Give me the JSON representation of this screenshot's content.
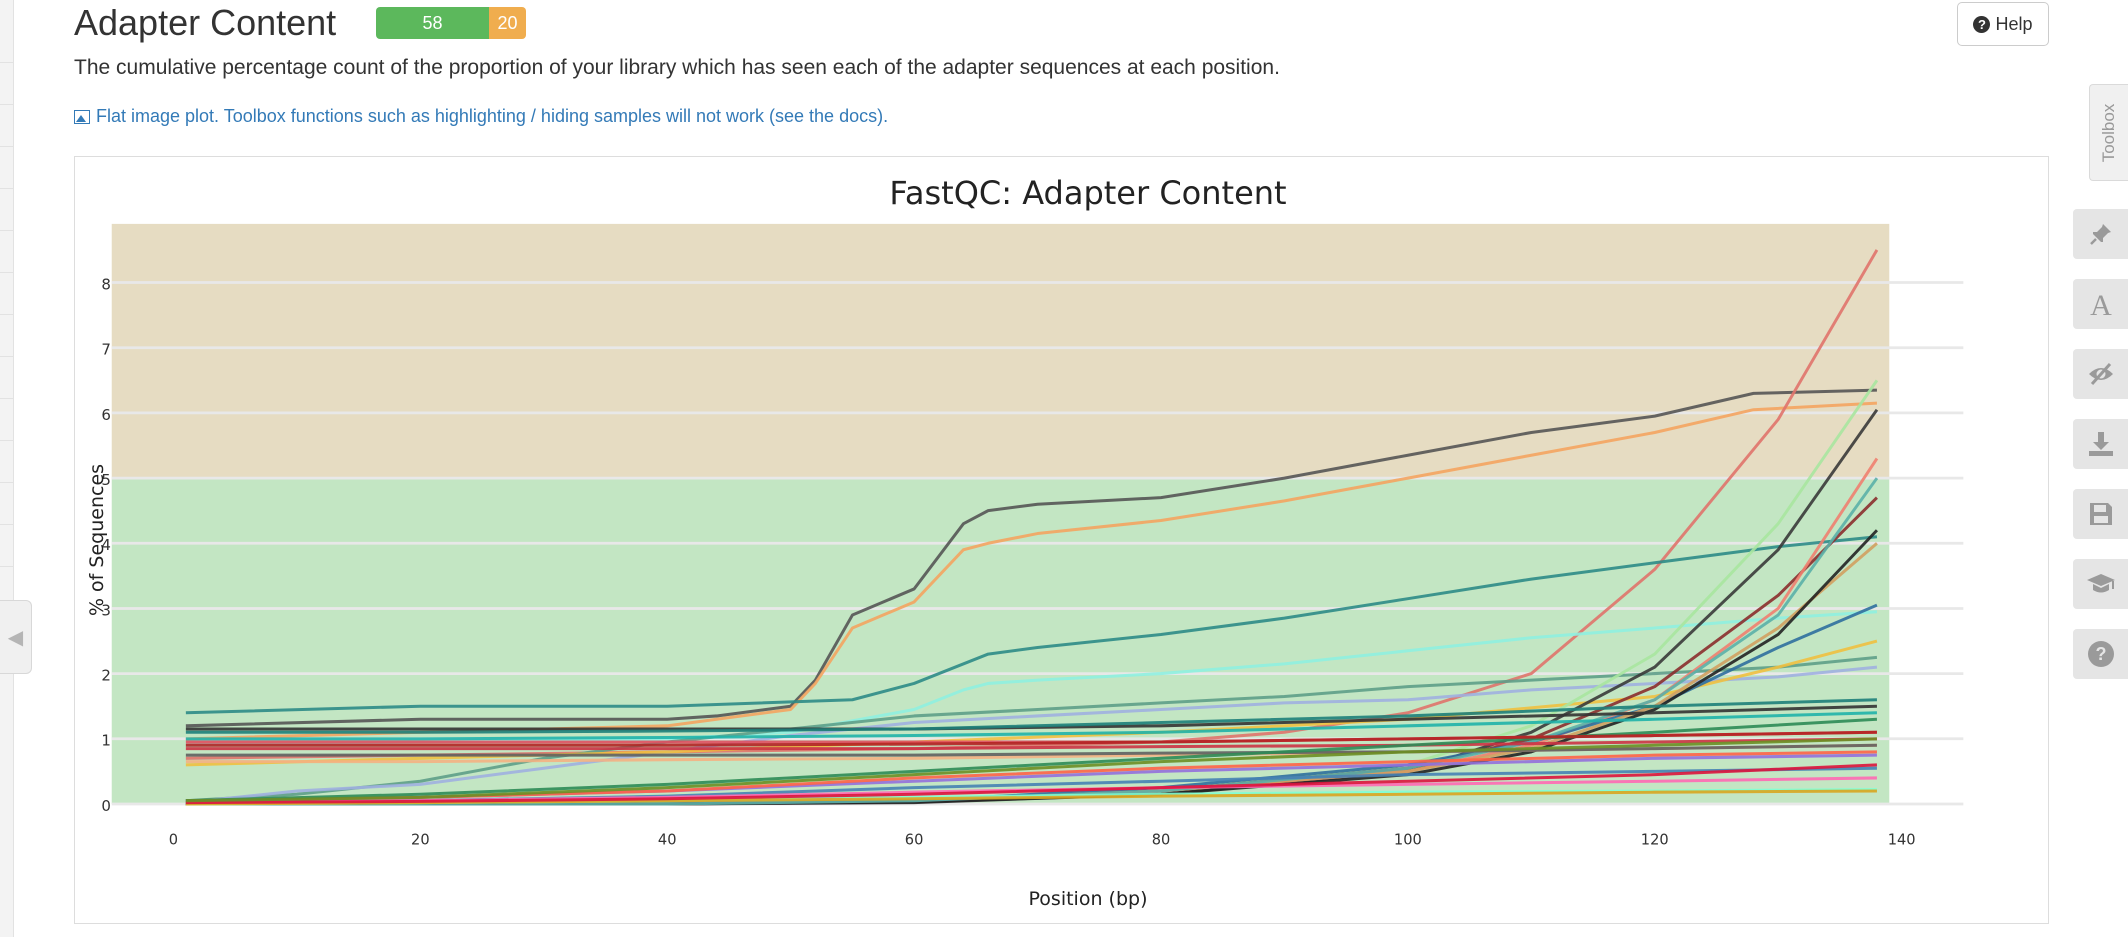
{
  "section": {
    "title": "Adapter Content",
    "status_pass": "58",
    "status_warn": "20",
    "help_label": "Help",
    "description": "The cumulative percentage count of the proportion of your library which has seen each of the adapter sequences at each position.",
    "flat_plot_notice": "Flat image plot. Toolbox functions such as highlighting / hiding samples will not work (see the docs)."
  },
  "toolbox": {
    "label": "Toolbox",
    "buttons": [
      "pin-icon",
      "font-icon",
      "eye-slash-icon",
      "download-icon",
      "save-icon",
      "graduation-cap-icon",
      "help-icon"
    ]
  },
  "colors": {
    "pass": "#5cb85c",
    "warn": "#f0ad4e",
    "green_zone": "#c3e6c3",
    "orange_zone": "#e6dcc2",
    "link": "#337ab7"
  },
  "chart_data": {
    "type": "line",
    "title": "FastQC: Adapter Content",
    "xlabel": "Position (bp)",
    "ylabel": "% of Sequences",
    "xlim": [
      -5,
      145
    ],
    "ylim": [
      0,
      8.9
    ],
    "xticks": [
      0,
      20,
      40,
      60,
      80,
      100,
      120,
      140
    ],
    "yticks": [
      0,
      1,
      2,
      3,
      4,
      5,
      6,
      7,
      8
    ],
    "bands": [
      {
        "from": 0,
        "to": 5,
        "status": "pass",
        "color": "#c3e6c3"
      },
      {
        "from": 5,
        "to": 8.9,
        "status": "warn",
        "color": "#e6dcc2"
      }
    ],
    "grid": true,
    "legend": "none",
    "series": [
      {
        "color": "#555555",
        "x": [
          1,
          20,
          40,
          44,
          50,
          52,
          55,
          60,
          64,
          66,
          70,
          80,
          90,
          100,
          110,
          120,
          128,
          138
        ],
        "values": [
          1.2,
          1.3,
          1.3,
          1.35,
          1.5,
          1.9,
          2.9,
          3.3,
          4.3,
          4.5,
          4.6,
          4.7,
          5.0,
          5.35,
          5.7,
          5.95,
          6.3,
          6.35
        ]
      },
      {
        "color": "#f4a460",
        "x": [
          1,
          20,
          40,
          44,
          50,
          52,
          55,
          60,
          64,
          66,
          70,
          80,
          90,
          100,
          110,
          120,
          128,
          138
        ],
        "values": [
          1.0,
          1.1,
          1.2,
          1.3,
          1.45,
          1.85,
          2.7,
          3.1,
          3.9,
          4.0,
          4.15,
          4.35,
          4.65,
          5.0,
          5.35,
          5.7,
          6.05,
          6.15
        ]
      },
      {
        "color": "#e0736b",
        "x": [
          1,
          20,
          40,
          60,
          80,
          90,
          100,
          110,
          120,
          130,
          138
        ],
        "values": [
          0.7,
          0.75,
          0.8,
          0.85,
          0.95,
          1.1,
          1.4,
          2.0,
          3.6,
          5.9,
          8.5
        ]
      },
      {
        "color": "#2e8b87",
        "x": [
          1,
          20,
          40,
          55,
          60,
          66,
          70,
          80,
          90,
          100,
          110,
          120,
          130,
          138
        ],
        "values": [
          1.4,
          1.5,
          1.5,
          1.6,
          1.85,
          2.3,
          2.4,
          2.6,
          2.85,
          3.15,
          3.45,
          3.7,
          3.95,
          4.1
        ]
      },
      {
        "color": "#8ff0e0",
        "x": [
          1,
          20,
          40,
          50,
          60,
          64,
          66,
          70,
          80,
          90,
          100,
          110,
          120,
          130,
          138
        ],
        "values": [
          0.9,
          0.95,
          1.0,
          1.1,
          1.45,
          1.75,
          1.85,
          1.9,
          2.0,
          2.15,
          2.35,
          2.55,
          2.7,
          2.85,
          2.95
        ]
      },
      {
        "color": "#5e9e88",
        "x": [
          1,
          10,
          20,
          30,
          40,
          50,
          60,
          70,
          80,
          90,
          100,
          110,
          120,
          130,
          138
        ],
        "values": [
          0.05,
          0.15,
          0.35,
          0.7,
          0.95,
          1.15,
          1.35,
          1.45,
          1.55,
          1.65,
          1.8,
          1.9,
          2.0,
          2.1,
          2.25
        ]
      },
      {
        "color": "#a0b0e0",
        "x": [
          1,
          10,
          20,
          30,
          40,
          50,
          60,
          70,
          80,
          90,
          100,
          110,
          120,
          130,
          138
        ],
        "values": [
          0.02,
          0.2,
          0.3,
          0.55,
          0.8,
          1.05,
          1.25,
          1.35,
          1.45,
          1.55,
          1.6,
          1.75,
          1.85,
          1.95,
          2.1
        ]
      },
      {
        "color": "#f0c040",
        "x": [
          1,
          20,
          40,
          60,
          80,
          100,
          120,
          130,
          138
        ],
        "values": [
          0.6,
          0.7,
          0.8,
          0.95,
          1.1,
          1.3,
          1.65,
          2.1,
          2.5
        ]
      },
      {
        "color": "#3a3a3a",
        "x": [
          1,
          20,
          40,
          60,
          80,
          100,
          110,
          120,
          130,
          138
        ],
        "values": [
          0.0,
          0.0,
          0.0,
          0.02,
          0.15,
          0.5,
          1.1,
          2.1,
          3.9,
          6.05
        ]
      },
      {
        "color": "#a8e6a0",
        "x": [
          1,
          20,
          40,
          60,
          80,
          100,
          110,
          120,
          130,
          138
        ],
        "values": [
          0.0,
          0.0,
          0.02,
          0.05,
          0.2,
          0.6,
          1.2,
          2.3,
          4.3,
          6.5
        ]
      },
      {
        "color": "#8b2e2e",
        "x": [
          1,
          20,
          40,
          60,
          80,
          100,
          110,
          120,
          130,
          138
        ],
        "values": [
          0.0,
          0.0,
          0.0,
          0.05,
          0.2,
          0.55,
          1.0,
          1.8,
          3.2,
          4.7
        ]
      },
      {
        "color": "#f08070",
        "x": [
          1,
          20,
          40,
          60,
          80,
          100,
          110,
          120,
          130,
          138
        ],
        "values": [
          0.0,
          0.0,
          0.0,
          0.05,
          0.2,
          0.5,
          0.9,
          1.6,
          3.0,
          5.3
        ]
      },
      {
        "color": "#2f6f9f",
        "x": [
          1,
          20,
          40,
          60,
          80,
          100,
          110,
          120,
          130,
          138
        ],
        "values": [
          0.0,
          0.0,
          0.02,
          0.05,
          0.25,
          0.6,
          0.95,
          1.5,
          2.4,
          3.05
        ]
      },
      {
        "color": "#d2a060",
        "x": [
          1,
          20,
          40,
          60,
          80,
          100,
          110,
          120,
          130,
          138
        ],
        "values": [
          0.0,
          0.0,
          0.0,
          0.05,
          0.2,
          0.5,
          0.85,
          1.5,
          2.7,
          4.0
        ]
      },
      {
        "color": "#222222",
        "x": [
          1,
          20,
          40,
          60,
          80,
          100,
          110,
          120,
          130,
          138
        ],
        "values": [
          0.0,
          0.0,
          0.0,
          0.03,
          0.15,
          0.45,
          0.8,
          1.45,
          2.6,
          4.2
        ]
      },
      {
        "color": "#5bb0a8",
        "x": [
          1,
          20,
          40,
          60,
          80,
          100,
          110,
          120,
          130,
          138
        ],
        "values": [
          0.0,
          0.0,
          0.0,
          0.05,
          0.2,
          0.55,
          0.95,
          1.6,
          2.9,
          5.0
        ]
      },
      {
        "color": "#e05060",
        "x": [
          1,
          20,
          40,
          60,
          80,
          100,
          120,
          138
        ],
        "values": [
          0.95,
          0.95,
          0.95,
          0.95,
          0.95,
          1.0,
          1.05,
          1.1
        ]
      },
      {
        "color": "#cc3344",
        "x": [
          1,
          20,
          40,
          60,
          80,
          100,
          120,
          138
        ],
        "values": [
          0.85,
          0.85,
          0.85,
          0.85,
          0.88,
          0.9,
          0.95,
          1.0
        ]
      },
      {
        "color": "#333333",
        "x": [
          1,
          20,
          40,
          60,
          80,
          100,
          120,
          138
        ],
        "values": [
          1.15,
          1.15,
          1.15,
          1.15,
          1.2,
          1.3,
          1.4,
          1.5
        ]
      },
      {
        "color": "#1e7f7a",
        "x": [
          1,
          20,
          40,
          60,
          80,
          100,
          120,
          138
        ],
        "values": [
          1.1,
          1.1,
          1.12,
          1.15,
          1.25,
          1.35,
          1.5,
          1.6
        ]
      },
      {
        "color": "#f4b183",
        "x": [
          1,
          20,
          40,
          60,
          80,
          100,
          120,
          138
        ],
        "values": [
          0.65,
          0.65,
          0.68,
          0.7,
          0.75,
          0.8,
          0.85,
          0.9
        ]
      },
      {
        "color": "#606060",
        "x": [
          1,
          20,
          40,
          60,
          80,
          100,
          120,
          138
        ],
        "values": [
          0.75,
          0.75,
          0.75,
          0.75,
          0.78,
          0.8,
          0.85,
          0.9
        ]
      },
      {
        "color": "#9370db",
        "x": [
          1,
          20,
          40,
          60,
          80,
          100,
          120,
          138
        ],
        "values": [
          0.05,
          0.1,
          0.2,
          0.35,
          0.5,
          0.6,
          0.7,
          0.75
        ]
      },
      {
        "color": "#ff6347",
        "x": [
          1,
          20,
          40,
          60,
          80,
          100,
          120,
          138
        ],
        "values": [
          0.03,
          0.1,
          0.2,
          0.4,
          0.55,
          0.65,
          0.75,
          0.8
        ]
      },
      {
        "color": "#2e8b57",
        "x": [
          1,
          20,
          40,
          60,
          80,
          100,
          120,
          138
        ],
        "values": [
          0.05,
          0.15,
          0.3,
          0.5,
          0.7,
          0.9,
          1.1,
          1.3
        ]
      },
      {
        "color": "#4682b4",
        "x": [
          1,
          20,
          40,
          60,
          80,
          100,
          120,
          138
        ],
        "values": [
          0.02,
          0.05,
          0.12,
          0.25,
          0.35,
          0.45,
          0.5,
          0.55
        ]
      },
      {
        "color": "#ff69b4",
        "x": [
          1,
          20,
          40,
          60,
          80,
          100,
          120,
          138
        ],
        "values": [
          0.02,
          0.05,
          0.1,
          0.18,
          0.25,
          0.3,
          0.35,
          0.4
        ]
      },
      {
        "color": "#7fffd4",
        "x": [
          1,
          20,
          40,
          60,
          80,
          100,
          120,
          138
        ],
        "values": [
          0.0,
          0.02,
          0.05,
          0.1,
          0.15,
          0.18,
          0.2,
          0.22
        ]
      },
      {
        "color": "#daa520",
        "x": [
          1,
          20,
          40,
          60,
          80,
          100,
          120,
          138
        ],
        "values": [
          0.0,
          0.02,
          0.05,
          0.08,
          0.12,
          0.15,
          0.18,
          0.2
        ]
      },
      {
        "color": "#dc143c",
        "x": [
          1,
          20,
          40,
          60,
          80,
          100,
          120,
          138
        ],
        "values": [
          0.02,
          0.04,
          0.08,
          0.15,
          0.25,
          0.35,
          0.45,
          0.6
        ]
      },
      {
        "color": "#6b8e23",
        "x": [
          1,
          20,
          40,
          60,
          80,
          100,
          120,
          138
        ],
        "values": [
          0.05,
          0.1,
          0.25,
          0.45,
          0.65,
          0.8,
          0.9,
          1.0
        ]
      },
      {
        "color": "#20b2aa",
        "x": [
          1,
          20,
          40,
          60,
          80,
          100,
          120,
          138
        ],
        "values": [
          1.0,
          1.0,
          1.02,
          1.05,
          1.1,
          1.2,
          1.3,
          1.4
        ]
      },
      {
        "color": "#b22222",
        "x": [
          1,
          20,
          40,
          60,
          80,
          100,
          120,
          138
        ],
        "values": [
          0.9,
          0.9,
          0.9,
          0.92,
          0.95,
          1.0,
          1.05,
          1.1
        ]
      }
    ]
  }
}
